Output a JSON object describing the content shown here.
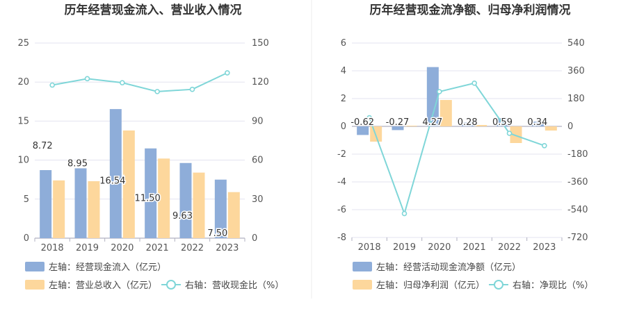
{
  "colors": {
    "blue": "#8eadd9",
    "orange": "#fdd79c",
    "cyan": "#7fd6d8",
    "grid": "#e3e3ef",
    "axis": "#b0b0c0"
  },
  "chart_data": [
    {
      "type": "bar",
      "title": "历年经营现金流入、营业收入情况",
      "categories": [
        "2018",
        "2019",
        "2020",
        "2021",
        "2022",
        "2023"
      ],
      "left_axis": {
        "ticks": [
          "0",
          "5",
          "10",
          "15",
          "20",
          "25"
        ],
        "ylim": [
          0,
          25
        ]
      },
      "right_axis": {
        "ticks": [
          "0",
          "30",
          "60",
          "90",
          "120",
          "150"
        ],
        "ylim": [
          0,
          150
        ]
      },
      "series": [
        {
          "name": "左轴：经营现金流入（亿元）",
          "kind": "bar",
          "axis": "left",
          "values": [
            8.72,
            8.95,
            16.54,
            11.5,
            9.63,
            7.5
          ],
          "labels": [
            "8.72",
            "8.95",
            "16.54",
            "11.50",
            "9.63",
            "7.50"
          ]
        },
        {
          "name": "左轴：营业总收入（亿元）",
          "kind": "bar",
          "axis": "left",
          "values": [
            7.4,
            7.3,
            13.8,
            10.2,
            8.4,
            5.9
          ]
        },
        {
          "name": "右轴：营收现金比（%）",
          "kind": "line",
          "axis": "right",
          "values": [
            117.7,
            122.6,
            119.5,
            112.7,
            114.4,
            127.1
          ]
        }
      ],
      "grid": true,
      "legend_position": "bottom"
    },
    {
      "type": "bar",
      "title": "历年经营现金流净额、归母净利润情况",
      "categories": [
        "2018",
        "2019",
        "2020",
        "2021",
        "2022",
        "2023"
      ],
      "left_axis": {
        "ticks": [
          "-8",
          "-6",
          "-4",
          "-2",
          "0",
          "2",
          "4",
          "6"
        ],
        "ylim": [
          -8,
          6
        ]
      },
      "right_axis": {
        "ticks": [
          "-720",
          "-540",
          "-360",
          "-180",
          "0",
          "180",
          "360",
          "540"
        ],
        "ylim": [
          -720,
          540
        ]
      },
      "series": [
        {
          "name": "左轴：经营活动现金流净额（亿元）",
          "kind": "bar",
          "axis": "left",
          "values": [
            -0.62,
            -0.27,
            4.27,
            0.28,
            0.59,
            0.34
          ],
          "labels": [
            "-0.62",
            "-0.27",
            "4.27",
            "0.28",
            "0.59",
            "0.34"
          ]
        },
        {
          "name": "左轴：归母净利润（亿元）",
          "kind": "bar",
          "axis": "left",
          "values": [
            -1.1,
            0.05,
            1.9,
            0.1,
            -1.2,
            -0.3
          ]
        },
        {
          "name": "右轴：净现比（%）",
          "kind": "line",
          "axis": "right",
          "values": [
            56,
            -565,
            225,
            280,
            -45,
            -125
          ]
        }
      ],
      "grid": true,
      "legend_position": "bottom"
    }
  ]
}
